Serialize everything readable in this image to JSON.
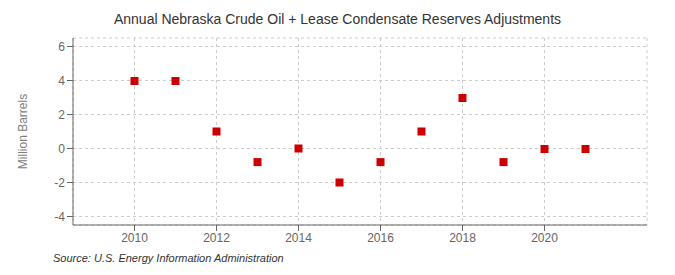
{
  "chart_data": {
    "type": "scatter",
    "title": "Annual Nebraska Crude Oil + Lease Condensate Reserves Adjustments",
    "y_label": "Million Barrels",
    "annotation": "Source: U.S. Energy Information Administration",
    "x": [
      2010,
      2011,
      2012,
      2013,
      2014,
      2015,
      2016,
      2017,
      2018,
      2019,
      2020,
      2021
    ],
    "values": [
      3.97,
      3.97,
      1.0,
      -0.8,
      0.0,
      -2.0,
      -0.8,
      1.0,
      2.97,
      -0.8,
      -0.03,
      -0.03
    ],
    "color": "#cc0000",
    "marker": "square",
    "xlim": [
      2008.5,
      2022.5
    ],
    "ylim": [
      -4.5,
      6.5
    ],
    "xticks": [
      2010,
      2012,
      2014,
      2016,
      2018,
      2020
    ],
    "yticks": [
      -4,
      -2,
      0,
      2,
      4,
      6
    ],
    "grid": true
  }
}
